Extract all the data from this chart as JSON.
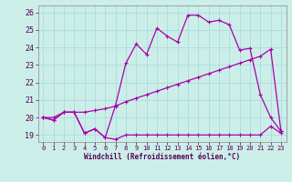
{
  "bg_color": "#cceee8",
  "grid_color": "#aadddd",
  "line_color": "#aa00aa",
  "xlabel": "Windchill (Refroidissement éolien,°C)",
  "ylim": [
    18.6,
    26.4
  ],
  "xlim": [
    -0.5,
    23.5
  ],
  "yticks": [
    19,
    20,
    21,
    22,
    23,
    24,
    25,
    26
  ],
  "xticks": [
    0,
    1,
    2,
    3,
    4,
    5,
    6,
    7,
    8,
    9,
    10,
    11,
    12,
    13,
    14,
    15,
    16,
    17,
    18,
    19,
    20,
    21,
    22,
    23
  ],
  "line1_x": [
    0,
    1,
    2,
    3,
    4,
    5,
    6,
    7,
    8,
    9,
    10,
    11,
    12,
    13,
    14,
    15,
    16,
    17,
    18,
    19,
    20,
    21,
    22,
    23
  ],
  "line1_y": [
    20.0,
    19.85,
    20.3,
    20.3,
    19.1,
    19.35,
    18.85,
    18.75,
    19.0,
    19.0,
    19.0,
    19.0,
    19.0,
    19.0,
    19.0,
    19.0,
    19.0,
    19.0,
    19.0,
    19.0,
    19.0,
    19.0,
    19.5,
    19.1
  ],
  "line2_x": [
    0,
    1,
    2,
    3,
    4,
    5,
    6,
    7,
    8,
    9,
    10,
    11,
    12,
    13,
    14,
    15,
    16,
    17,
    18,
    19,
    20,
    21,
    22,
    23
  ],
  "line2_y": [
    20.0,
    20.0,
    20.3,
    20.3,
    20.3,
    20.4,
    20.5,
    20.65,
    20.9,
    21.1,
    21.3,
    21.5,
    21.7,
    21.9,
    22.1,
    22.3,
    22.5,
    22.7,
    22.9,
    23.1,
    23.3,
    23.5,
    23.9,
    19.2
  ],
  "line3_x": [
    0,
    1,
    2,
    3,
    4,
    5,
    6,
    7,
    8,
    9,
    10,
    11,
    12,
    13,
    14,
    15,
    16,
    17,
    18,
    19,
    20,
    21,
    22,
    23
  ],
  "line3_y": [
    20.0,
    19.85,
    20.3,
    20.3,
    19.1,
    19.35,
    18.85,
    20.7,
    23.1,
    24.2,
    23.6,
    25.1,
    24.65,
    24.3,
    25.85,
    25.85,
    25.45,
    25.55,
    25.3,
    23.85,
    23.95,
    21.3,
    20.0,
    19.2
  ],
  "marker": "+",
  "markersize": 3,
  "linewidth": 0.9
}
